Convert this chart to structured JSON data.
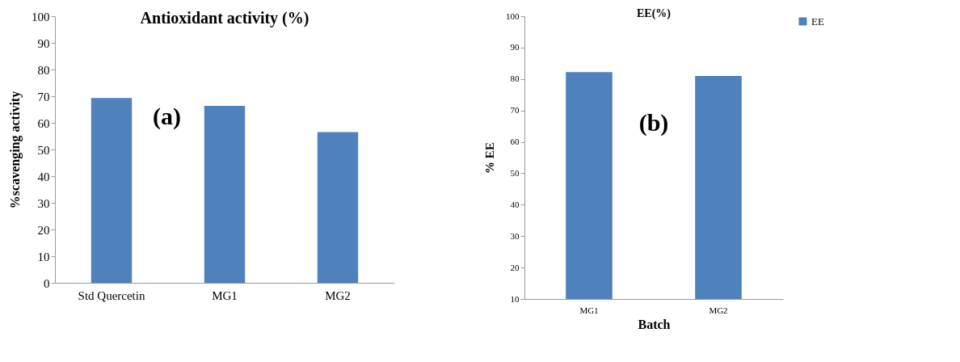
{
  "chart_data": [
    {
      "type": "bar",
      "title": "Antioxidant activity (%)",
      "ylabel": "%scavenging activity",
      "categories": [
        "Std Quercetin",
        "MG1",
        "MG2"
      ],
      "series": [
        {
          "color": "#4f81bd",
          "values": [
            69.3,
            66.4,
            56.5
          ]
        }
      ],
      "ylim": [
        0,
        100
      ],
      "yticks": [
        0,
        10,
        20,
        30,
        40,
        50,
        60,
        70,
        80,
        90,
        100
      ],
      "annotations": [
        "(a)"
      ]
    },
    {
      "type": "bar",
      "title": "EE(%)",
      "ylabel": "% EE",
      "xlabel": "Batch",
      "categories": [
        "MG1",
        "MG2"
      ],
      "series": [
        {
          "name": "EE",
          "color": "#4f81bd",
          "values": [
            82.2,
            81.0
          ]
        }
      ],
      "ylim": [
        10,
        100
      ],
      "yticks": [
        10,
        20,
        30,
        40,
        50,
        60,
        70,
        80,
        90,
        100
      ],
      "legend": "right",
      "annotations": [
        "(b)"
      ]
    }
  ]
}
